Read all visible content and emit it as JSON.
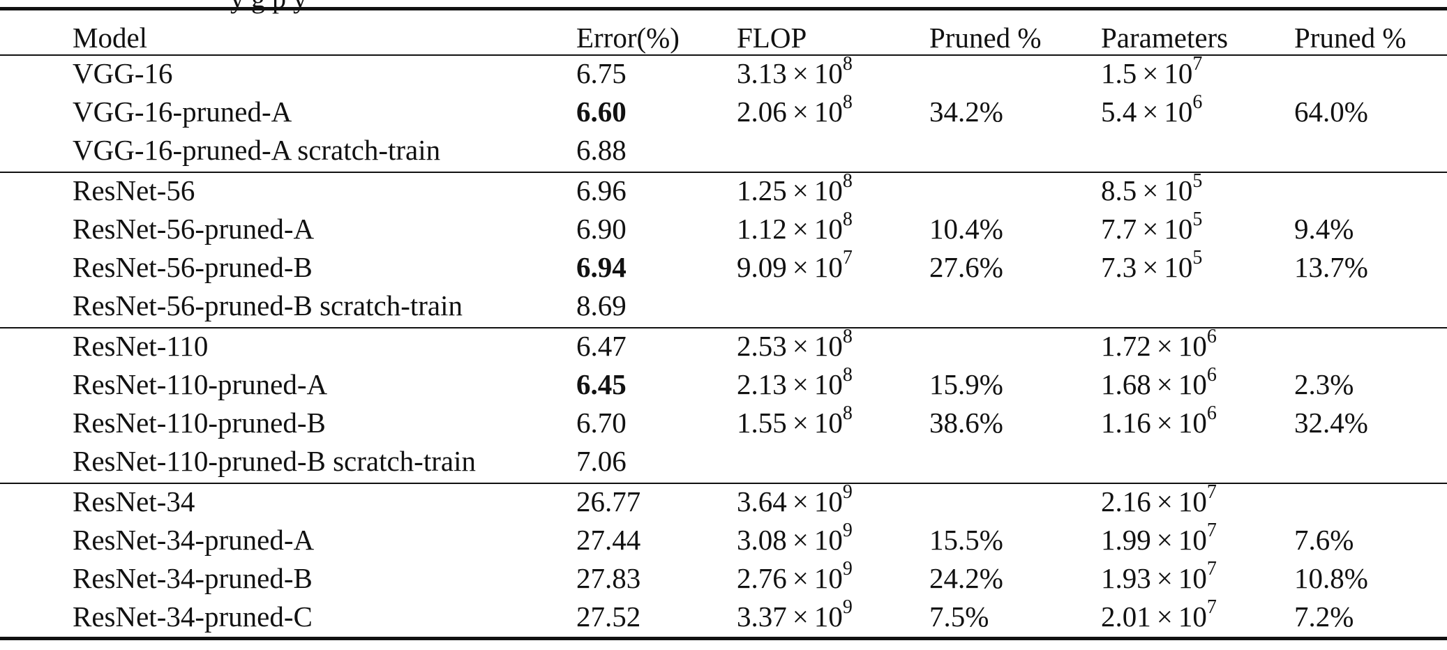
{
  "caption_fragment": "y                      g                                                   p    y",
  "columns": {
    "model": "Model",
    "error": "Error(%)",
    "flop": "FLOP",
    "flop_pruned": "Pruned %",
    "params": "Parameters",
    "params_pruned": "Pruned %"
  },
  "times_symbol": "×",
  "groups": [
    {
      "rows": [
        {
          "model": "VGG-16",
          "error": "6.75",
          "bold": false,
          "flop_mant": "3.13",
          "flop_exp": "8",
          "flop_pruned": "",
          "param_mant": "1.5",
          "param_exp": "7",
          "param_pruned": ""
        },
        {
          "model": "VGG-16-pruned-A",
          "error": "6.60",
          "bold": true,
          "flop_mant": "2.06",
          "flop_exp": "8",
          "flop_pruned": "34.2%",
          "param_mant": "5.4",
          "param_exp": "6",
          "param_pruned": "64.0%"
        },
        {
          "model": "VGG-16-pruned-A scratch-train",
          "error": "6.88",
          "bold": false,
          "flop_mant": "",
          "flop_exp": "",
          "flop_pruned": "",
          "param_mant": "",
          "param_exp": "",
          "param_pruned": ""
        }
      ]
    },
    {
      "rows": [
        {
          "model": "ResNet-56",
          "error": "6.96",
          "bold": false,
          "flop_mant": "1.25",
          "flop_exp": "8",
          "flop_pruned": "",
          "param_mant": "8.5",
          "param_exp": "5",
          "param_pruned": ""
        },
        {
          "model": "ResNet-56-pruned-A",
          "error": "6.90",
          "bold": false,
          "flop_mant": "1.12",
          "flop_exp": "8",
          "flop_pruned": "10.4%",
          "param_mant": "7.7",
          "param_exp": "5",
          "param_pruned": "9.4%"
        },
        {
          "model": "ResNet-56-pruned-B",
          "error": "6.94",
          "bold": true,
          "flop_mant": "9.09",
          "flop_exp": "7",
          "flop_pruned": "27.6%",
          "param_mant": "7.3",
          "param_exp": "5",
          "param_pruned": "13.7%"
        },
        {
          "model": "ResNet-56-pruned-B scratch-train",
          "error": "8.69",
          "bold": false,
          "flop_mant": "",
          "flop_exp": "",
          "flop_pruned": "",
          "param_mant": "",
          "param_exp": "",
          "param_pruned": ""
        }
      ]
    },
    {
      "rows": [
        {
          "model": "ResNet-110",
          "error": "6.47",
          "bold": false,
          "flop_mant": "2.53",
          "flop_exp": "8",
          "flop_pruned": "",
          "param_mant": "1.72",
          "param_exp": "6",
          "param_pruned": ""
        },
        {
          "model": "ResNet-110-pruned-A",
          "error": "6.45",
          "bold": true,
          "flop_mant": "2.13",
          "flop_exp": "8",
          "flop_pruned": "15.9%",
          "param_mant": "1.68",
          "param_exp": "6",
          "param_pruned": "2.3%"
        },
        {
          "model": "ResNet-110-pruned-B",
          "error": "6.70",
          "bold": false,
          "flop_mant": "1.55",
          "flop_exp": "8",
          "flop_pruned": "38.6%",
          "param_mant": "1.16",
          "param_exp": "6",
          "param_pruned": "32.4%"
        },
        {
          "model": "ResNet-110-pruned-B scratch-train",
          "error": "7.06",
          "bold": false,
          "flop_mant": "",
          "flop_exp": "",
          "flop_pruned": "",
          "param_mant": "",
          "param_exp": "",
          "param_pruned": ""
        }
      ]
    },
    {
      "rows": [
        {
          "model": "ResNet-34",
          "error": "26.77",
          "bold": false,
          "flop_mant": "3.64",
          "flop_exp": "9",
          "flop_pruned": "",
          "param_mant": "2.16",
          "param_exp": "7",
          "param_pruned": ""
        },
        {
          "model": "ResNet-34-pruned-A",
          "error": "27.44",
          "bold": false,
          "flop_mant": "3.08",
          "flop_exp": "9",
          "flop_pruned": "15.5%",
          "param_mant": "1.99",
          "param_exp": "7",
          "param_pruned": "7.6%"
        },
        {
          "model": "ResNet-34-pruned-B",
          "error": "27.83",
          "bold": false,
          "flop_mant": "2.76",
          "flop_exp": "9",
          "flop_pruned": "24.2%",
          "param_mant": "1.93",
          "param_exp": "7",
          "param_pruned": "10.8%"
        },
        {
          "model": "ResNet-34-pruned-C",
          "error": "27.52",
          "bold": false,
          "flop_mant": "3.37",
          "flop_exp": "9",
          "flop_pruned": "7.5%",
          "param_mant": "2.01",
          "param_exp": "7",
          "param_pruned": "7.2%"
        }
      ]
    }
  ]
}
